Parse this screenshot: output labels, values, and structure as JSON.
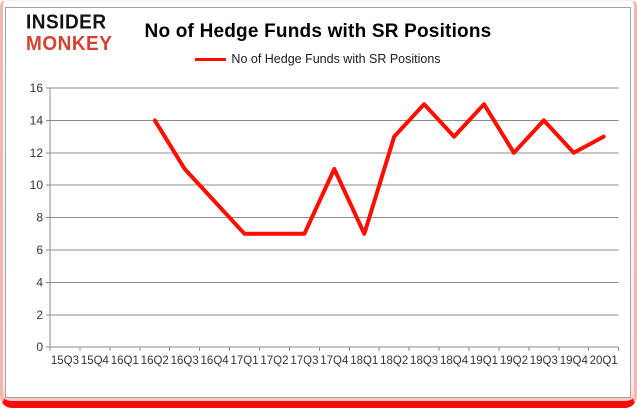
{
  "logo": {
    "line1": "INSIDER",
    "line2": "MONKEY"
  },
  "header": {
    "title": "No of Hedge Funds with SR Positions"
  },
  "legend": {
    "label": "No of Hedge Funds with SR Positions",
    "swatch_color": "#fe0d00"
  },
  "chart_data": {
    "type": "line",
    "title": "No of Hedge Funds with SR Positions",
    "categories": [
      "15Q3",
      "15Q4",
      "16Q1",
      "16Q2",
      "16Q3",
      "16Q4",
      "17Q1",
      "17Q2",
      "17Q3",
      "17Q4",
      "18Q1",
      "18Q2",
      "18Q3",
      "18Q4",
      "19Q1",
      "19Q2",
      "19Q3",
      "19Q4",
      "20Q1"
    ],
    "series": [
      {
        "name": "No of Hedge Funds with SR Positions",
        "color": "#fe0d00",
        "values": [
          null,
          null,
          null,
          14,
          11,
          9,
          7,
          7,
          7,
          11,
          7,
          13,
          15,
          13,
          15,
          12,
          14,
          12,
          13
        ]
      }
    ],
    "xlabel": "",
    "ylabel": "",
    "ylim": [
      0,
      16
    ],
    "yticks": [
      0,
      2,
      4,
      6,
      8,
      10,
      12,
      14,
      16
    ],
    "grid": "horizontal",
    "legend_position": "top",
    "grid_color": "#8c8c8c",
    "axis_color": "#8c8c8c",
    "label_color": "#333333"
  }
}
